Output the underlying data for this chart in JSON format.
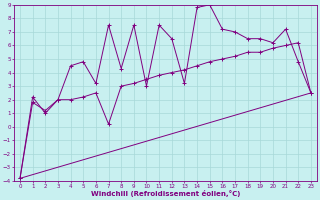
{
  "xlabel": "Windchill (Refroidissement éolien,°C)",
  "bg_color": "#c8f0f0",
  "grid_color": "#a8d8d8",
  "line_color": "#800080",
  "xlim": [
    -0.5,
    23.5
  ],
  "ylim": [
    -4,
    9
  ],
  "xticks": [
    0,
    1,
    2,
    3,
    4,
    5,
    6,
    7,
    8,
    9,
    10,
    11,
    12,
    13,
    14,
    15,
    16,
    17,
    18,
    19,
    20,
    21,
    22,
    23
  ],
  "yticks": [
    -4,
    -3,
    -2,
    -1,
    0,
    1,
    2,
    3,
    4,
    5,
    6,
    7,
    8,
    9
  ],
  "line1_x": [
    0,
    1,
    2,
    3,
    4,
    5,
    6,
    7,
    8,
    9,
    10,
    11,
    12,
    13,
    14,
    15,
    16,
    17,
    18,
    19,
    20,
    21,
    22,
    23
  ],
  "line1_y": [
    -3.8,
    2.2,
    1.0,
    2.0,
    4.5,
    4.8,
    3.2,
    7.5,
    4.3,
    7.5,
    3.0,
    7.5,
    6.5,
    3.2,
    8.8,
    9.0,
    7.2,
    7.0,
    6.5,
    6.5,
    6.2,
    7.2,
    4.8,
    2.5
  ],
  "line2_x": [
    0,
    1,
    2,
    3,
    4,
    5,
    6,
    7,
    8,
    9,
    10,
    11,
    12,
    13,
    14,
    15,
    16,
    17,
    18,
    19,
    20,
    21,
    22,
    23
  ],
  "line2_y": [
    -3.8,
    1.8,
    1.2,
    2.0,
    2.0,
    2.2,
    2.5,
    0.2,
    3.0,
    3.2,
    3.5,
    3.8,
    4.0,
    4.2,
    4.5,
    4.8,
    5.0,
    5.2,
    5.5,
    5.5,
    5.8,
    6.0,
    6.2,
    2.5
  ],
  "line3_x": [
    0,
    23
  ],
  "line3_y": [
    -3.8,
    2.5
  ]
}
